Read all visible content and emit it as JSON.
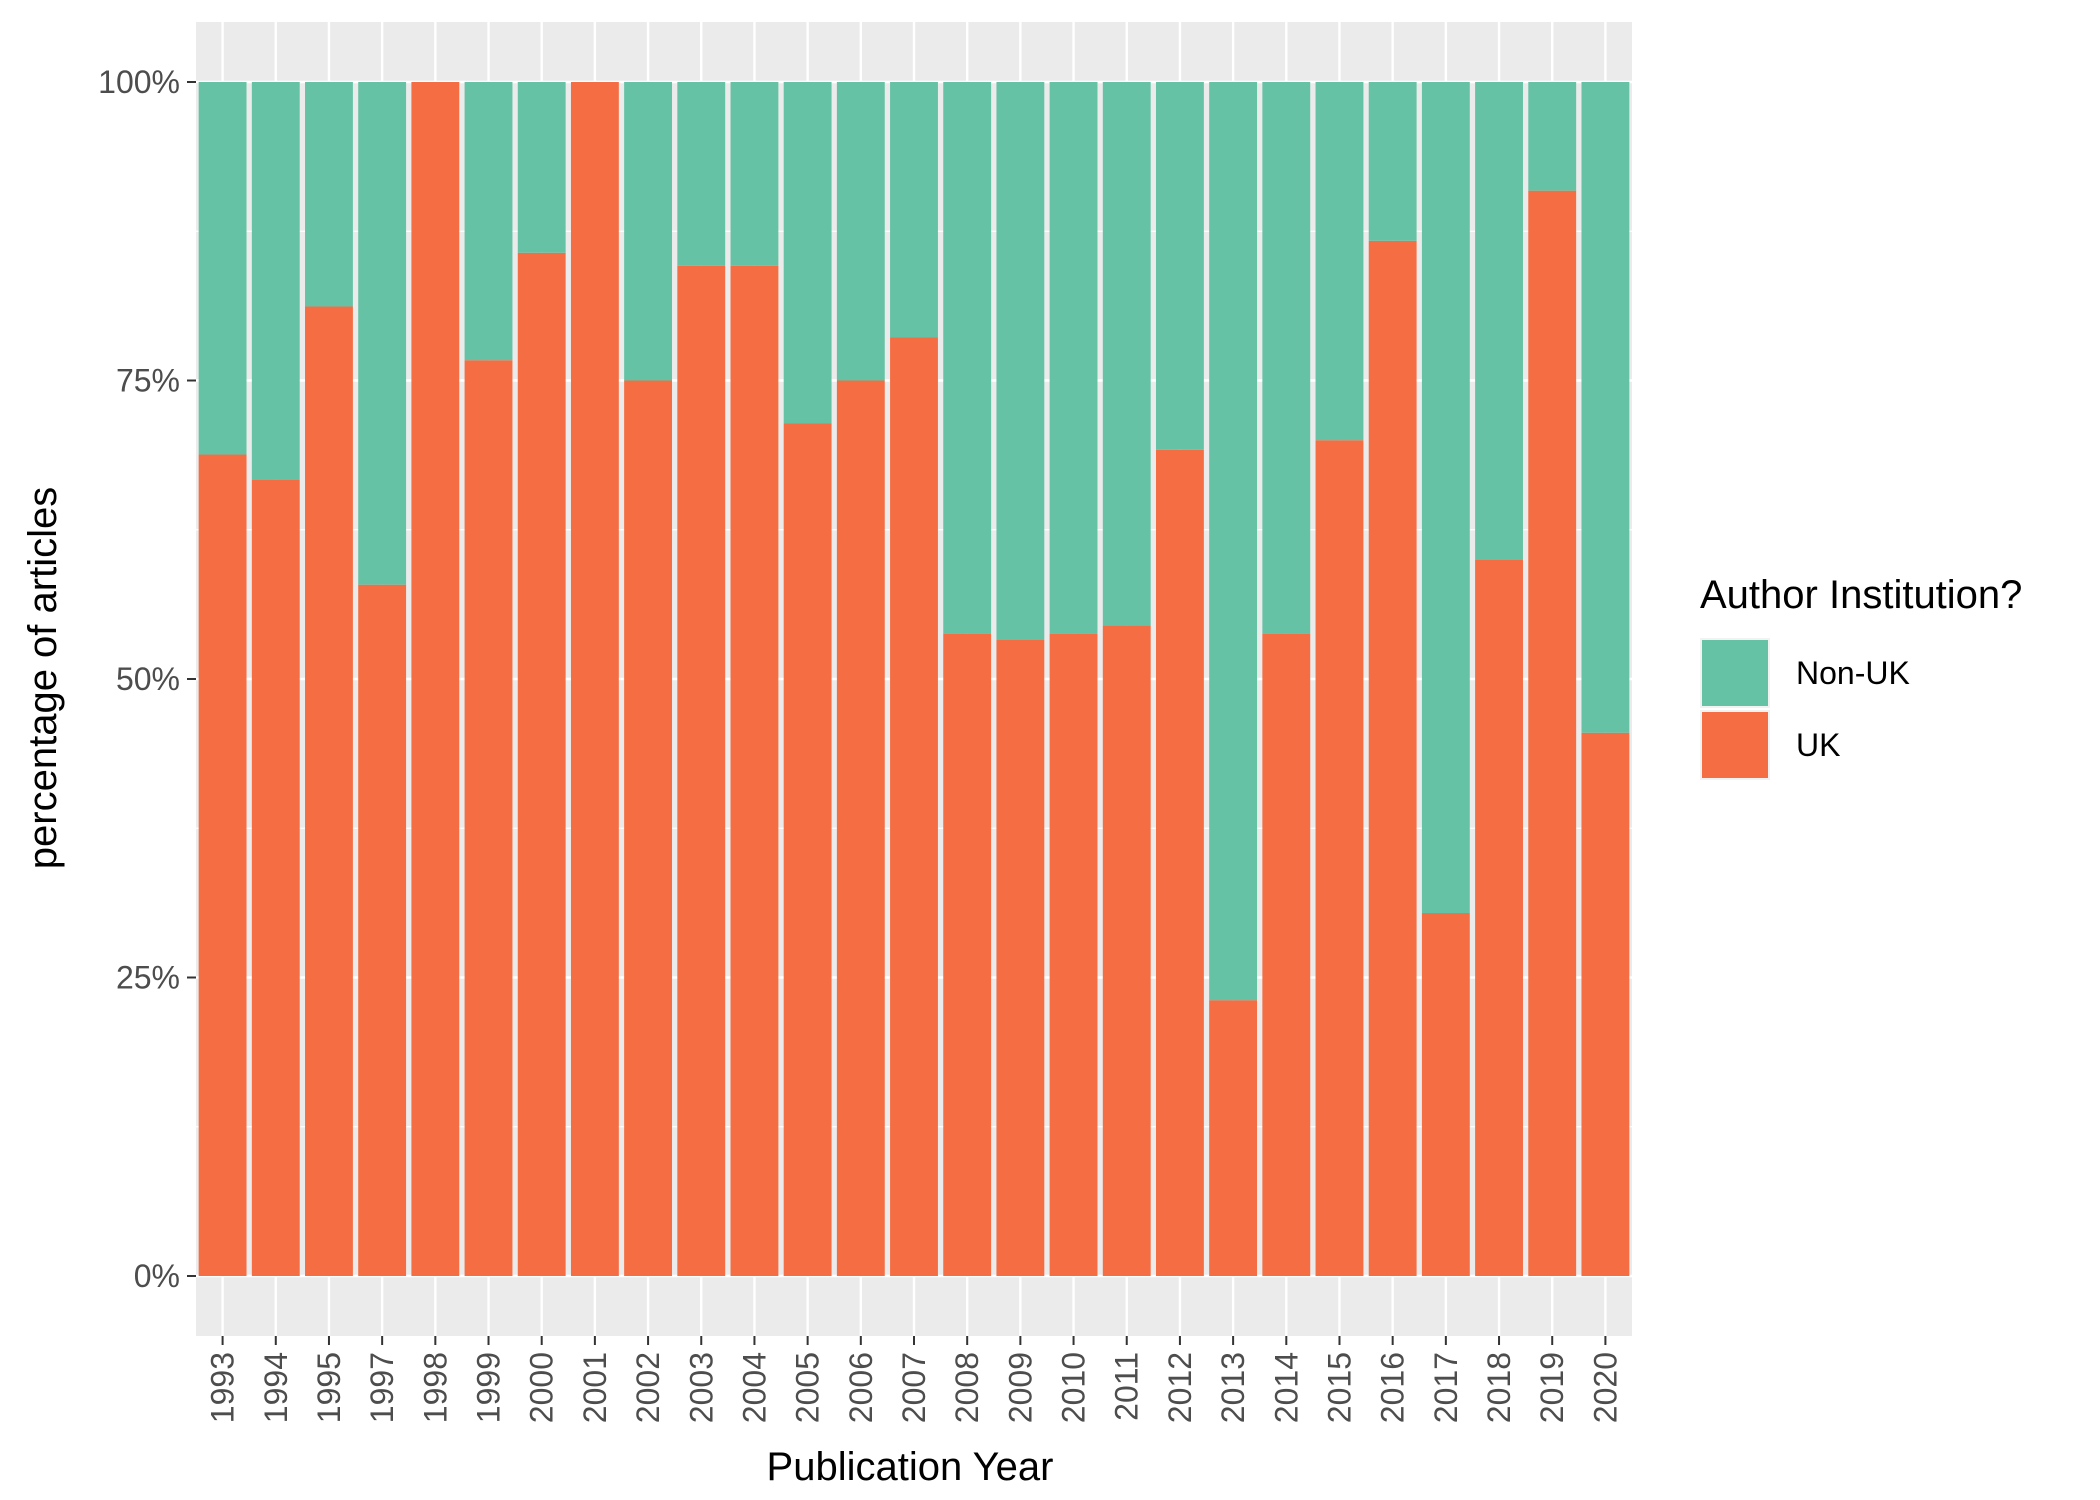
{
  "chart_data": {
    "type": "bar",
    "stacked": "percent",
    "xlabel": "Publication Year",
    "ylabel": "percentage of articles",
    "ylim": [
      0,
      100
    ],
    "y_ticks": [
      "0%",
      "25%",
      "50%",
      "75%",
      "100%"
    ],
    "categories": [
      "1993",
      "1994",
      "1995",
      "1997",
      "1998",
      "1999",
      "2000",
      "2001",
      "2002",
      "2003",
      "2004",
      "2005",
      "2006",
      "2007",
      "2008",
      "2009",
      "2010",
      "2011",
      "2012",
      "2013",
      "2014",
      "2015",
      "2016",
      "2017",
      "2018",
      "2019",
      "2020"
    ],
    "legend": {
      "title": "Author Institution?",
      "position": "right"
    },
    "series": [
      {
        "name": "Non-UK",
        "color": "#66c2a5",
        "values": [
          31.2,
          33.3,
          18.8,
          42.1,
          0,
          23.3,
          14.3,
          0,
          25.0,
          15.4,
          15.4,
          28.6,
          25.0,
          21.4,
          46.2,
          46.7,
          46.2,
          45.5,
          30.8,
          76.9,
          46.2,
          30.0,
          13.3,
          69.6,
          40.0,
          9.1,
          54.5
        ]
      },
      {
        "name": "UK",
        "color": "#f46d43",
        "values": [
          68.8,
          66.7,
          81.2,
          57.9,
          100,
          76.7,
          85.7,
          100,
          75.0,
          84.6,
          84.6,
          71.4,
          75.0,
          78.6,
          53.8,
          53.3,
          53.8,
          54.5,
          69.2,
          23.1,
          53.8,
          70.0,
          86.7,
          30.4,
          60.0,
          90.9,
          45.5
        ]
      }
    ],
    "grid": true,
    "panel_background": "#ebebeb"
  }
}
